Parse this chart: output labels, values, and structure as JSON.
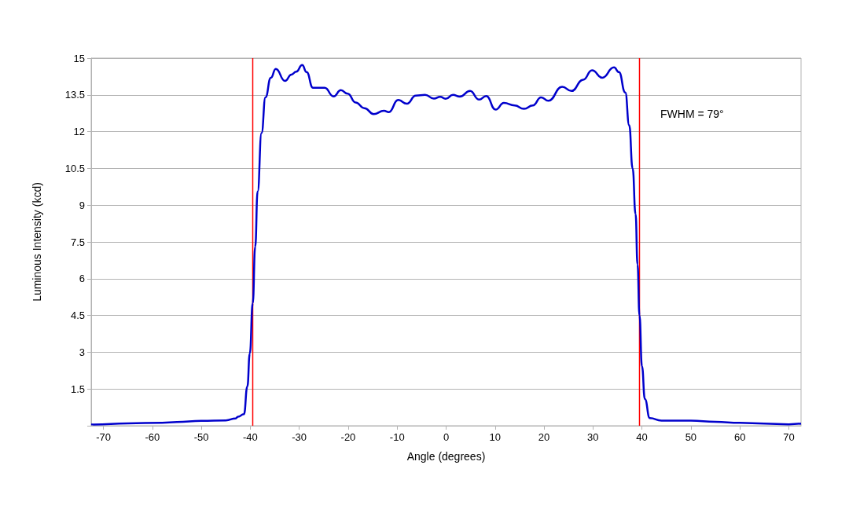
{
  "chart_data": {
    "type": "line",
    "xlabel": "Angle (degrees)",
    "ylabel": "Luminous Intensity (kcd)",
    "xlim": [
      -72.5,
      72.5
    ],
    "xticks": [
      -70,
      -60,
      -50,
      -40,
      -30,
      -20,
      -10,
      0,
      10,
      20,
      30,
      40,
      50,
      60,
      70
    ],
    "ylim": [
      0,
      15
    ],
    "yticks": [
      {
        "value": 0,
        "label": null
      },
      1.5,
      3,
      4.5,
      6,
      7.5,
      9,
      10.5,
      12,
      13.5,
      15
    ],
    "grid": "y",
    "marker": "none",
    "line_style": "solid",
    "ref_lines": [
      {
        "axis": "x",
        "value": -39.5,
        "color": "#ff0000"
      },
      {
        "axis": "x",
        "value": 39.5,
        "color": "#ff0000"
      }
    ],
    "annotations": [
      "FWHM = 79°"
    ],
    "series": [
      {
        "color": "#0000cc",
        "x": [
          -72.5,
          -72,
          -65,
          -58,
          -55,
          -50,
          -45,
          -43,
          -42.5,
          -41.3,
          -40.6,
          -40.1,
          -39.5,
          -39.0,
          -38.5,
          -37.7,
          -36.9,
          -35.8,
          -34.8,
          -32.9,
          -31.6,
          -30.6,
          -29.4,
          -28.5,
          -27.2,
          -24.8,
          -23.0,
          -21.5,
          -20.1,
          -18.5,
          -16.7,
          -14.8,
          -12.7,
          -11.7,
          -9.8,
          -8.0,
          -6.2,
          -4.3,
          -2.5,
          -1.2,
          -0.1,
          1.4,
          2.8,
          4.9,
          6.7,
          8.2,
          10.1,
          11.8,
          14.0,
          15.9,
          17.7,
          19.4,
          20.9,
          23.7,
          25.6,
          28.0,
          29.8,
          31.9,
          34.3,
          35.3,
          36.6,
          37.4,
          38.1,
          38.7,
          39.1,
          39.5,
          40.0,
          40.6,
          41.6,
          44.0,
          50,
          55,
          60,
          65,
          70,
          72.5
        ],
        "values": [
          0.06,
          0.05,
          0.1,
          0.12,
          0.15,
          0.2,
          0.22,
          0.3,
          0.37,
          0.47,
          1.6,
          2.95,
          5.0,
          7.3,
          9.56,
          11.95,
          13.4,
          14.2,
          14.56,
          14.07,
          14.33,
          14.45,
          14.72,
          14.43,
          13.79,
          13.79,
          13.44,
          13.69,
          13.55,
          13.19,
          12.96,
          12.72,
          12.85,
          12.8,
          13.29,
          13.14,
          13.47,
          13.5,
          13.35,
          13.42,
          13.34,
          13.5,
          13.43,
          13.66,
          13.31,
          13.45,
          12.9,
          13.17,
          13.07,
          12.93,
          13.07,
          13.4,
          13.26,
          13.83,
          13.66,
          14.12,
          14.5,
          14.2,
          14.62,
          14.43,
          13.6,
          12.26,
          10.5,
          8.64,
          6.58,
          4.5,
          2.43,
          1.09,
          0.31,
          0.21,
          0.21,
          0.16,
          0.12,
          0.09,
          0.06,
          0.09
        ]
      }
    ]
  }
}
